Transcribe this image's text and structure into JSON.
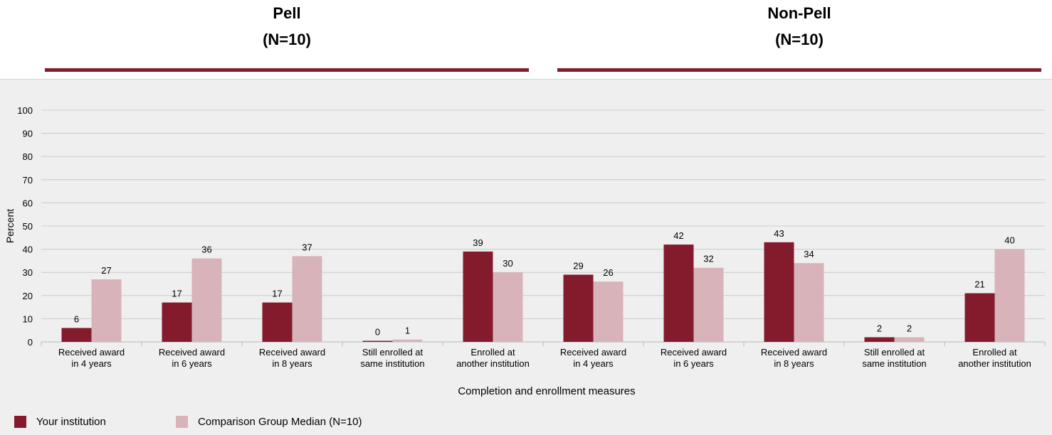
{
  "headers": {
    "pell": {
      "title": "Pell",
      "n": "(N=10)"
    },
    "nonpell": {
      "title": "Non-Pell",
      "n": "(N=10)"
    }
  },
  "colors": {
    "institution": "#841b2d",
    "comparison": "#d8b3b9",
    "rule": "#841b2d",
    "grid": "#cccccc"
  },
  "chart_data": {
    "type": "bar",
    "title": "",
    "xlabel": "Completion and enrollment measures",
    "ylabel": "Percent",
    "ylim": [
      0,
      100
    ],
    "yticks": [
      0,
      10,
      20,
      30,
      40,
      50,
      60,
      70,
      80,
      90,
      100
    ],
    "grid": true,
    "groups": [
      "Pell",
      "Non-Pell"
    ],
    "categories": [
      [
        "Received award",
        "in 4 years"
      ],
      [
        "Received award",
        "in 6 years"
      ],
      [
        "Received award",
        "in 8 years"
      ],
      [
        "Still enrolled at",
        "same institution"
      ],
      [
        "Enrolled at",
        "another institution"
      ],
      [
        "Received award",
        "in 4 years"
      ],
      [
        "Received award",
        "in 6 years"
      ],
      [
        "Received award",
        "in 8 years"
      ],
      [
        "Still enrolled at",
        "same institution"
      ],
      [
        "Enrolled at",
        "another institution"
      ]
    ],
    "series": [
      {
        "name": "Your institution",
        "values": [
          6,
          17,
          17,
          0,
          39,
          29,
          42,
          43,
          2,
          21
        ]
      },
      {
        "name": "Comparison Group Median (N=10)",
        "values": [
          27,
          36,
          37,
          1,
          30,
          26,
          32,
          34,
          2,
          40
        ]
      }
    ],
    "legend_position": "bottom-left"
  }
}
